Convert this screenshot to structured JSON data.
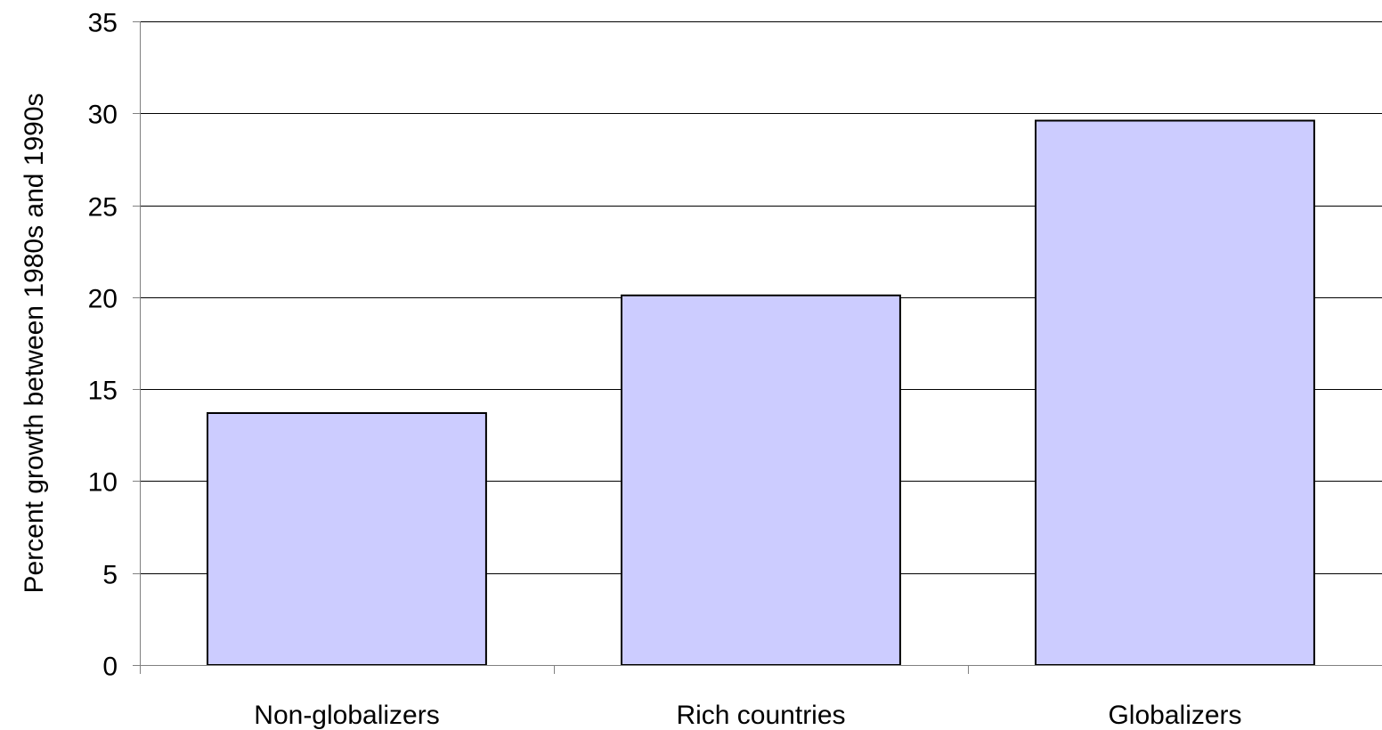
{
  "chart_data": {
    "type": "bar",
    "categories": [
      "Non-globalizers",
      "Rich countries",
      "Globalizers"
    ],
    "values": [
      13.7,
      20.1,
      29.6
    ],
    "title": "",
    "xlabel": "",
    "ylabel": "Percent growth between 1980s and 1990s",
    "ylim": [
      0,
      35
    ],
    "yticks": [
      0,
      5,
      10,
      15,
      20,
      25,
      30,
      35
    ],
    "ytick_labels": [
      "0",
      "5",
      "10",
      "15",
      "20",
      "25",
      "30",
      "35"
    ],
    "grid": true,
    "legend": "none",
    "colors": {
      "bar_fill": "#ccccff",
      "bar_stroke": "#000000",
      "gridline": "#000000",
      "axis": "#808080"
    }
  }
}
